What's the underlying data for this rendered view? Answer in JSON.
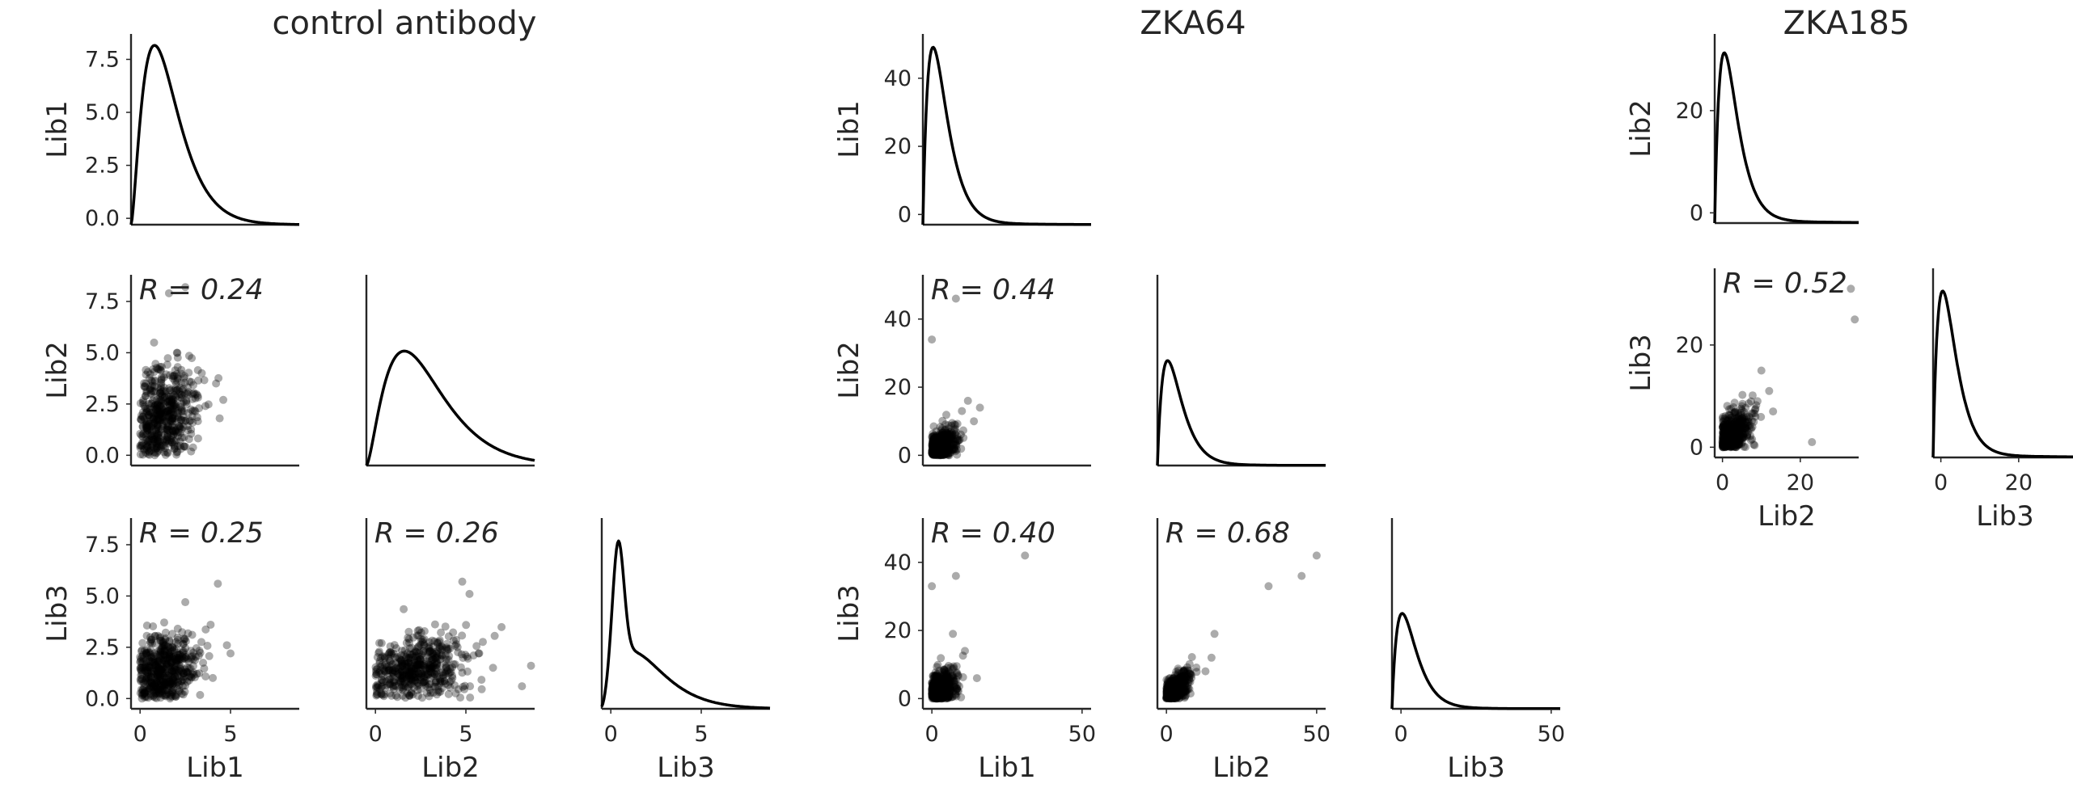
{
  "chart_data": [
    {
      "type": "scatter",
      "title": "control antibody",
      "variables": [
        "Lib1",
        "Lib2",
        "Lib3"
      ],
      "ticks": [
        0,
        5
      ],
      "diag_ticks": [
        0.0,
        2.5,
        5.0,
        7.5
      ],
      "lim": [
        -0.5,
        8.8
      ],
      "diag_lim": [
        -0.3,
        8.7
      ],
      "correlations": [
        {
          "row": "Lib2",
          "col": "Lib1",
          "label": "R = 0.24",
          "r": 0.24
        },
        {
          "row": "Lib3",
          "col": "Lib1",
          "label": "R = 0.25",
          "r": 0.25
        },
        {
          "row": "Lib3",
          "col": "Lib2",
          "label": "R = 0.26",
          "r": 0.26
        }
      ],
      "density_peaks": {
        "Lib1": 1.0,
        "Lib2": 1.8,
        "Lib3": 1.4
      },
      "outliers": [
        {
          "row": "Lib2",
          "col": "Lib1",
          "points": [
            [
              2.5,
              8.2
            ],
            [
              1.6,
              7.9
            ],
            [
              4.6,
              2.7
            ],
            [
              4.2,
              3.5
            ],
            [
              4.4,
              1.8
            ]
          ]
        },
        {
          "row": "Lib3",
          "col": "Lib1",
          "points": [
            [
              4.3,
              5.6
            ],
            [
              4.8,
              2.6
            ],
            [
              5.0,
              2.2
            ],
            [
              3.9,
              3.6
            ],
            [
              2.5,
              4.7
            ]
          ]
        },
        {
          "row": "Lib3",
          "col": "Lib2",
          "points": [
            [
              8.6,
              1.6
            ],
            [
              8.1,
              0.6
            ],
            [
              5.7,
              2.2
            ],
            [
              4.8,
              5.7
            ],
            [
              5.2,
              5.1
            ],
            [
              6.5,
              1.5
            ]
          ]
        }
      ]
    },
    {
      "type": "scatter",
      "title": "ZKA64",
      "variables": [
        "Lib1",
        "Lib2",
        "Lib3"
      ],
      "ticks": [
        0,
        50
      ],
      "diag_ticks": [
        0,
        20,
        40
      ],
      "lim": [
        -3,
        53
      ],
      "diag_lim": [
        -3,
        53
      ],
      "correlations": [
        {
          "row": "Lib2",
          "col": "Lib1",
          "label": "R = 0.44",
          "r": 0.44
        },
        {
          "row": "Lib3",
          "col": "Lib1",
          "label": "R = 0.40",
          "r": 0.4
        },
        {
          "row": "Lib3",
          "col": "Lib2",
          "label": "R = 0.68",
          "r": 0.68
        }
      ],
      "density_peaks": {
        "Lib1": 1.0,
        "Lib2": 1.5,
        "Lib3": 1.3
      },
      "outliers": [
        {
          "row": "Lib2",
          "col": "Lib1",
          "points": [
            [
              8,
              46
            ],
            [
              0,
              34
            ],
            [
              16,
              14
            ],
            [
              12,
              16
            ],
            [
              10,
              13
            ],
            [
              14,
              10
            ]
          ]
        },
        {
          "row": "Lib3",
          "col": "Lib1",
          "points": [
            [
              31,
              42
            ],
            [
              8,
              36
            ],
            [
              0,
              33
            ],
            [
              7,
              19
            ],
            [
              15,
              6
            ],
            [
              11,
              14
            ]
          ]
        },
        {
          "row": "Lib3",
          "col": "Lib2",
          "points": [
            [
              50,
              42
            ],
            [
              45,
              36
            ],
            [
              34,
              33
            ],
            [
              16,
              19
            ],
            [
              15,
              12
            ],
            [
              13,
              8
            ]
          ]
        }
      ]
    },
    {
      "type": "scatter",
      "title": "ZKA185",
      "variables": [
        "Lib2",
        "Lib3"
      ],
      "ticks": [
        0,
        20
      ],
      "diag_ticks": [
        0,
        20
      ],
      "lim": [
        -2,
        35
      ],
      "diag_lim": [
        -2,
        35
      ],
      "correlations": [
        {
          "row": "Lib3",
          "col": "Lib2",
          "label": "R = 0.52",
          "r": 0.52
        }
      ],
      "density_peaks": {
        "Lib2": 1.2,
        "Lib3": 1.3
      },
      "outliers": [
        {
          "row": "Lib3",
          "col": "Lib2",
          "points": [
            [
              33,
              31
            ],
            [
              34,
              25
            ],
            [
              10,
              15
            ],
            [
              12,
              11
            ],
            [
              23,
              1
            ],
            [
              13,
              7
            ],
            [
              9,
              9
            ]
          ]
        }
      ]
    }
  ]
}
